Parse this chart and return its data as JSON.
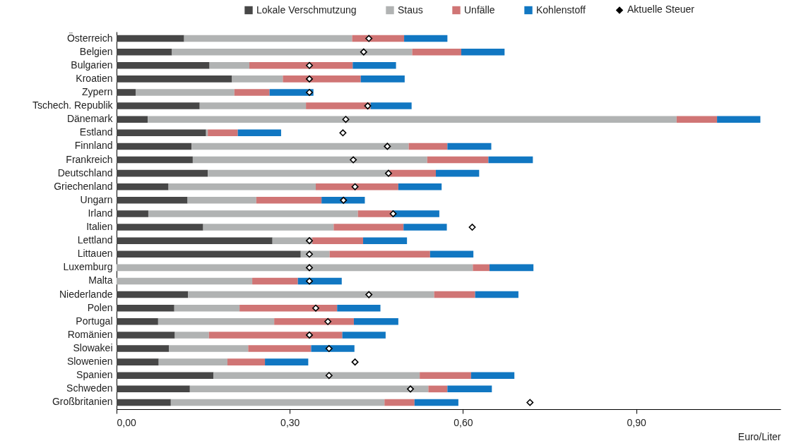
{
  "chart_data": {
    "type": "bar",
    "orientation": "horizontal",
    "stacked": true,
    "xlabel": "Euro/Liter",
    "categories": [
      "Österreich",
      "Belgien",
      "Bulgarien",
      "Kroatien",
      "Zypern",
      "Tschech. Republik",
      "Dänemark",
      "Estland",
      "Finnland",
      "Frankreich",
      "Deutschland",
      "Griechenland",
      "Ungarn",
      "Irland",
      "Italien",
      "Lettland",
      "Littauen",
      "Luxemburg",
      "Malta",
      "Niederlande",
      "Polen",
      "Portugal",
      "Romänien",
      "Slowakei",
      "Slowenien",
      "Spanien",
      "Schweden",
      "Großbritanien"
    ],
    "series": [
      {
        "name": "Lokale Verschmutzung",
        "color": "#474747",
        "values": [
          0.117,
          0.096,
          0.161,
          0.2,
          0.033,
          0.144,
          0.054,
          0.155,
          0.13,
          0.132,
          0.158,
          0.09,
          0.123,
          0.055,
          0.15,
          0.27,
          0.319,
          0,
          0,
          0.124,
          0.1,
          0.072,
          0.101,
          0.091,
          0.073,
          0.168,
          0.127,
          0.094
        ]
      },
      {
        "name": "Staus",
        "color": "#b1b3b3",
        "values": [
          0.291,
          0.416,
          0.069,
          0.088,
          0.171,
          0.184,
          0.916,
          0.003,
          0.376,
          0.406,
          0.315,
          0.255,
          0.119,
          0.363,
          0.226,
          0.069,
          0.05,
          0.617,
          0.235,
          0.426,
          0.113,
          0.201,
          0.059,
          0.137,
          0.119,
          0.357,
          0.413,
          0.37
        ]
      },
      {
        "name": "Unfälle",
        "color": "#d07575",
        "values": [
          0.09,
          0.085,
          0.179,
          0.135,
          0.061,
          0.112,
          0.07,
          0.052,
          0.067,
          0.106,
          0.08,
          0.143,
          0.113,
          0.059,
          0.121,
          0.088,
          0.174,
          0.029,
          0.079,
          0.071,
          0.169,
          0.138,
          0.231,
          0.109,
          0.065,
          0.089,
          0.033,
          0.052
        ]
      },
      {
        "name": "Kohlenstoff",
        "color": "#1177c2",
        "values": [
          0.075,
          0.075,
          0.075,
          0.076,
          0.076,
          0.071,
          0.075,
          0.075,
          0.076,
          0.077,
          0.075,
          0.075,
          0.075,
          0.082,
          0.075,
          0.076,
          0.075,
          0.076,
          0.076,
          0.075,
          0.075,
          0.077,
          0.075,
          0.075,
          0.075,
          0.075,
          0.077,
          0.076
        ]
      },
      {
        "name": "Aktuelle Steuer",
        "type": "scatter",
        "color": "#000000",
        "values": [
          0.437,
          0.428,
          0.334,
          0.334,
          0.334,
          0.435,
          0.397,
          0.392,
          0.469,
          0.41,
          0.471,
          0.413,
          0.393,
          0.479,
          0.616,
          0.334,
          0.334,
          0.334,
          0.334,
          0.437,
          0.345,
          0.366,
          0.334,
          0.368,
          0.413,
          0.368,
          0.509,
          0.716
        ]
      }
    ],
    "marker": "diamond",
    "legend": "top right",
    "xlim": [
      0,
      1.15
    ],
    "xticks": [
      {
        "value": 0,
        "label": "0,00"
      },
      {
        "value": 0.3,
        "label": "0,30"
      },
      {
        "value": 0.6,
        "label": "0,60"
      },
      {
        "value": 0.9,
        "label": "0,90"
      }
    ]
  }
}
